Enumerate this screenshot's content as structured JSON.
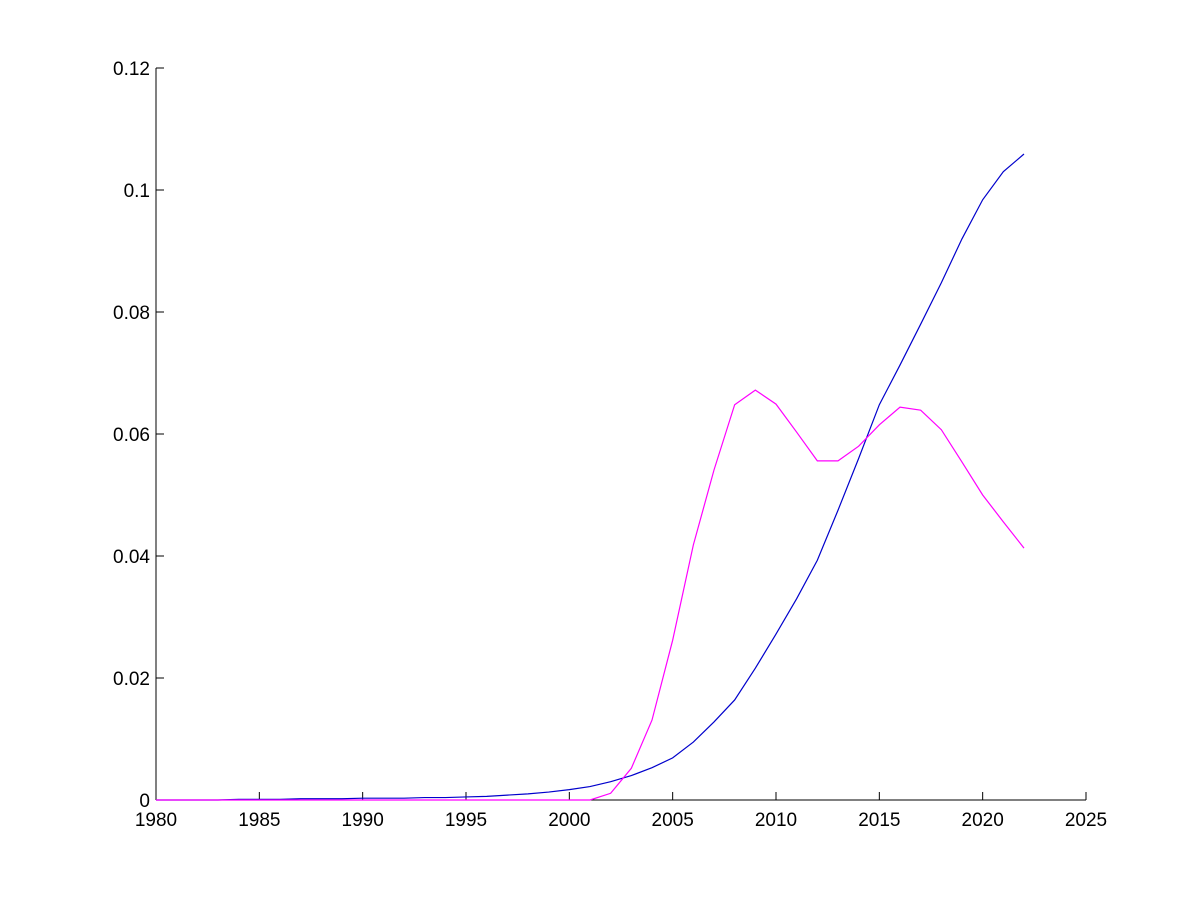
{
  "chart_data": {
    "type": "line",
    "x": [
      1980,
      1981,
      1982,
      1983,
      1984,
      1985,
      1986,
      1987,
      1988,
      1989,
      1990,
      1991,
      1992,
      1993,
      1994,
      1995,
      1996,
      1997,
      1998,
      1999,
      2000,
      2001,
      2002,
      2003,
      2004,
      2005,
      2006,
      2007,
      2008,
      2009,
      2010,
      2011,
      2012,
      2013,
      2014,
      2015,
      2016,
      2017,
      2018,
      2019,
      2020,
      2021,
      2022
    ],
    "series": [
      {
        "color": "#0000cc",
        "values": [
          0,
          0,
          0,
          0,
          0.0001,
          0.0001,
          0.0001,
          0.0002,
          0.0002,
          0.0002,
          0.0003,
          0.0003,
          0.0003,
          0.0004,
          0.0004,
          0.0005,
          0.0006,
          0.0008,
          0.001,
          0.0013,
          0.0017,
          0.0022,
          0.003,
          0.004,
          0.0053,
          0.0069,
          0.0095,
          0.0128,
          0.0164,
          0.0216,
          0.0272,
          0.033,
          0.0393,
          0.0475,
          0.056,
          0.0648,
          0.0713,
          0.078,
          0.0848,
          0.092,
          0.0984,
          0.103,
          0.1059
        ]
      },
      {
        "color": "#ff00ff",
        "values": [
          0,
          0,
          0,
          0,
          0,
          0,
          0,
          0,
          0,
          0,
          0,
          0,
          0,
          0,
          0,
          0,
          0,
          0,
          0,
          0,
          0,
          0,
          0.0011,
          0.0052,
          0.0131,
          0.0262,
          0.0418,
          0.0541,
          0.0648,
          0.0672,
          0.0649,
          0.0603,
          0.0556,
          0.0556,
          0.058,
          0.0615,
          0.0644,
          0.0639,
          0.0607,
          0.0554,
          0.05,
          0.0456,
          0.0413
        ]
      }
    ],
    "xlim": [
      1980,
      2025
    ],
    "xticks": [
      1980,
      1985,
      1990,
      1995,
      2000,
      2005,
      2010,
      2015,
      2020,
      2025
    ],
    "ylim": [
      0,
      0.12
    ],
    "yticks": [
      0,
      0.02,
      0.04,
      0.06,
      0.08,
      0.1,
      0.12
    ]
  }
}
